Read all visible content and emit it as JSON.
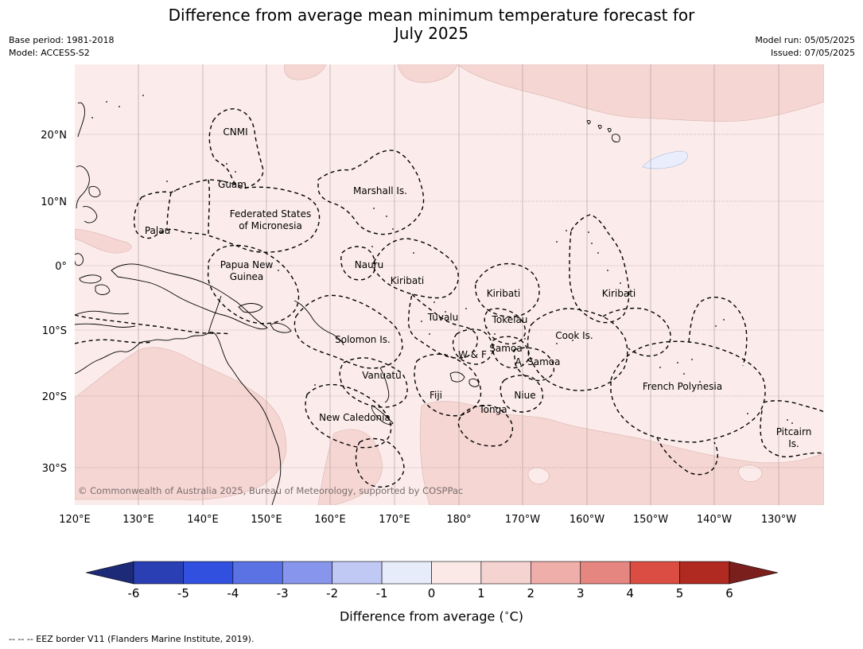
{
  "title_line1": "Difference from average mean minimum temperature forecast for",
  "title_line2": "July 2025",
  "base_period": "Base period: 1981-2018",
  "model": "Model: ACCESS-S2",
  "model_run": "Model run: 05/05/2025",
  "issued": "Issued: 07/05/2025",
  "copyright": "© Commonwealth of Australia 2025, Bureau of Meteorology, supported by COSPPac",
  "lat_ticks": [
    "20°N",
    "10°N",
    "0°",
    "10°S",
    "20°S",
    "30°S"
  ],
  "lon_ticks": [
    "120°E",
    "130°E",
    "140°E",
    "150°E",
    "160°E",
    "170°E",
    "180°",
    "170°W",
    "160°W",
    "150°W",
    "140°W",
    "130°W"
  ],
  "regions": [
    "CNMI",
    "Guam",
    "Marshall Is.",
    "Federated States",
    "of Micronesia",
    "Palau",
    "Papua New",
    "Guinea",
    "Nauru",
    "Kiribati",
    "Kiribati",
    "Kiribati",
    "Tuvalu",
    "Tokelau",
    "Solomon Is.",
    "W & F",
    "Samoa",
    "A. Samoa",
    "Cook Is.",
    "Vanuatu",
    "Fiji",
    "Niue",
    "Tonga",
    "French Polynesia",
    "New Caledonia",
    "Pitcairn",
    "Is."
  ],
  "colorbar": {
    "ticks": [
      "-6",
      "-5",
      "-4",
      "-3",
      "-2",
      "-1",
      "0",
      "1",
      "2",
      "3",
      "4",
      "5",
      "6"
    ],
    "colors": [
      "#2a3fb4",
      "#3150e0",
      "#5a72e4",
      "#8796ec",
      "#c0c8f4",
      "#e7ecfb",
      "#fbe9e8",
      "#f5d3d1",
      "#efaeaa",
      "#e58680",
      "#db4c42",
      "#b02a22"
    ],
    "under_color": "#1d2a78",
    "over_color": "#7a1f1c",
    "title": "Difference from average (",
    "title_unit": "C)",
    "title_degree": "∘"
  },
  "footnote": "-- -- -- EEZ border V11 (Flanders Marine Institute, 2019).",
  "colors": {
    "ocean_light": "#fbeceb",
    "warm": "#f5d6d3",
    "cool": "#e8eefc",
    "border": "#000000"
  }
}
